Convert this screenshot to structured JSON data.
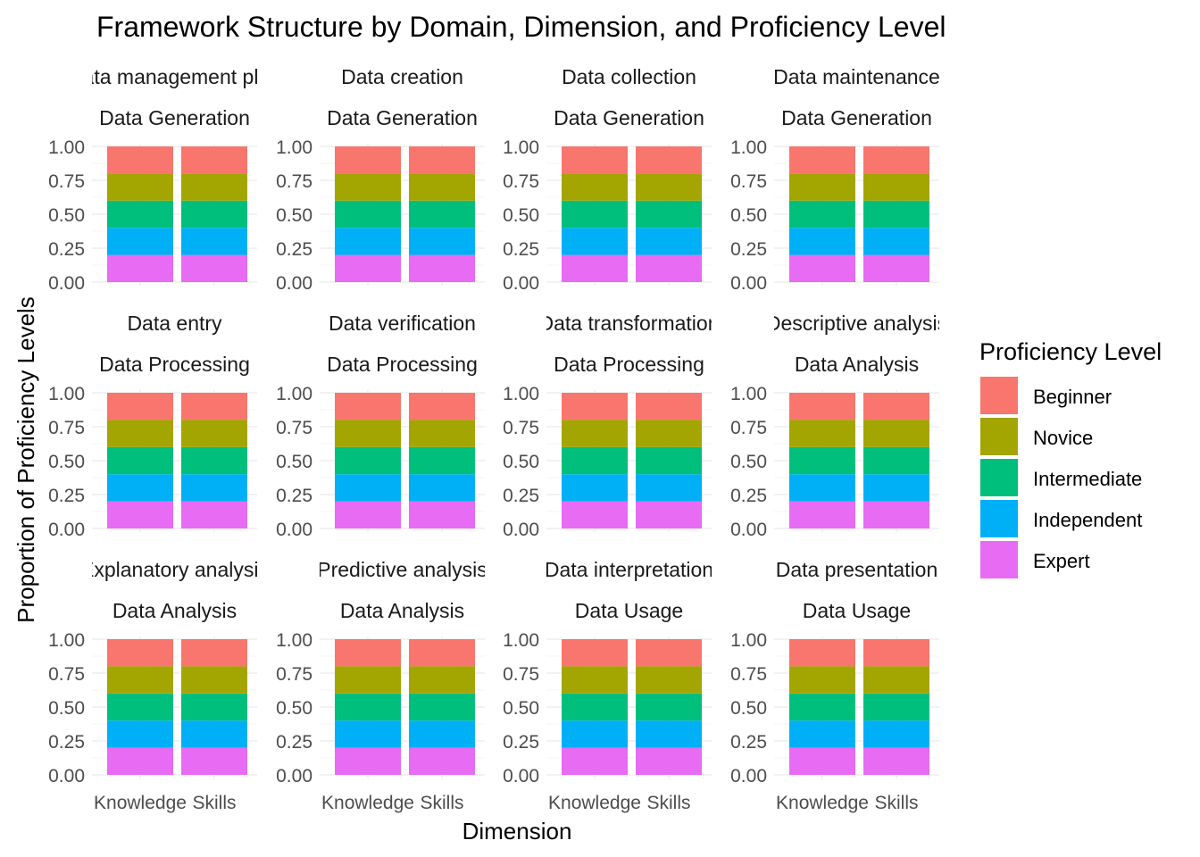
{
  "chart_data": {
    "type": "bar",
    "stacked": true,
    "title": "Framework Structure by Domain, Dimension, and Proficiency Level",
    "xlabel": "Dimension",
    "ylabel": "Proportion of Proficiency Levels",
    "ylim": [
      0,
      1
    ],
    "y_ticks": [
      "0.00",
      "0.25",
      "0.50",
      "0.75",
      "1.00"
    ],
    "categories": [
      "Knowledge",
      "Skills"
    ],
    "legend": {
      "title": "Proficiency Level",
      "placement": "right",
      "entries": [
        {
          "name": "Beginner",
          "color": "#F8766D"
        },
        {
          "name": "Novice",
          "color": "#A3A500"
        },
        {
          "name": "Intermediate",
          "color": "#00BF7D"
        },
        {
          "name": "Independent",
          "color": "#00B0F6"
        },
        {
          "name": "Expert",
          "color": "#E76BF3"
        }
      ]
    },
    "stack_order_bottom_to_top": [
      "Expert",
      "Independent",
      "Intermediate",
      "Novice",
      "Beginner"
    ],
    "facets": [
      {
        "strip_top": "Data management plan",
        "strip_bottom": "Data Generation"
      },
      {
        "strip_top": "Data creation",
        "strip_bottom": "Data Generation"
      },
      {
        "strip_top": "Data collection",
        "strip_bottom": "Data Generation"
      },
      {
        "strip_top": "Data maintenance",
        "strip_bottom": "Data Generation"
      },
      {
        "strip_top": "Data entry",
        "strip_bottom": "Data Processing"
      },
      {
        "strip_top": "Data verification",
        "strip_bottom": "Data Processing"
      },
      {
        "strip_top": "Data transformation",
        "strip_bottom": "Data Processing"
      },
      {
        "strip_top": "Descriptive analysis",
        "strip_bottom": "Data Analysis"
      },
      {
        "strip_top": "Explanatory analysis",
        "strip_bottom": "Data Analysis"
      },
      {
        "strip_top": "Predictive analysis",
        "strip_bottom": "Data Analysis"
      },
      {
        "strip_top": "Data interpretation",
        "strip_bottom": "Data Usage"
      },
      {
        "strip_top": "Data presentation",
        "strip_bottom": "Data Usage"
      }
    ],
    "series": [
      {
        "name": "Beginner",
        "values": [
          0.2,
          0.2
        ]
      },
      {
        "name": "Novice",
        "values": [
          0.2,
          0.2
        ]
      },
      {
        "name": "Intermediate",
        "values": [
          0.2,
          0.2
        ]
      },
      {
        "name": "Independent",
        "values": [
          0.2,
          0.2
        ]
      },
      {
        "name": "Expert",
        "values": [
          0.2,
          0.2
        ]
      }
    ],
    "note_values": "Every facet shows the same proportions for Knowledge and Skills."
  }
}
